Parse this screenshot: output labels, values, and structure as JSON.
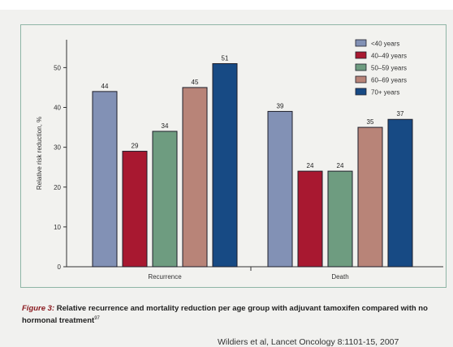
{
  "chart_data": {
    "type": "bar",
    "categories": [
      "Recurrence",
      "Death"
    ],
    "series": [
      {
        "name": "<40 years",
        "values": [
          44,
          39
        ],
        "color": "#8291b5"
      },
      {
        "name": "40–49 years",
        "values": [
          29,
          24
        ],
        "color": "#a81830"
      },
      {
        "name": "50–59 years",
        "values": [
          34,
          24
        ],
        "color": "#6e9c80"
      },
      {
        "name": "60–69 years",
        "values": [
          45,
          35
        ],
        "color": "#b88478"
      },
      {
        "name": "70+ years",
        "values": [
          51,
          37
        ],
        "color": "#174a84"
      }
    ],
    "title": "",
    "xlabel": "",
    "ylabel": "Relative risk reduction, %",
    "ylim": [
      0,
      57
    ],
    "yticks": [
      0,
      10,
      20,
      30,
      40,
      50
    ],
    "grid": false,
    "legend": "top-right",
    "data_labels": true
  },
  "caption": {
    "figure_label": "Figure 3:",
    "text": "Relative recurrence and mortality reduction per age group with adjuvant tamoxifen compared with no hormonal treatment",
    "ref": "97"
  },
  "citation": "Wildiers et al, Lancet Oncology 8:1101-15, 2007"
}
